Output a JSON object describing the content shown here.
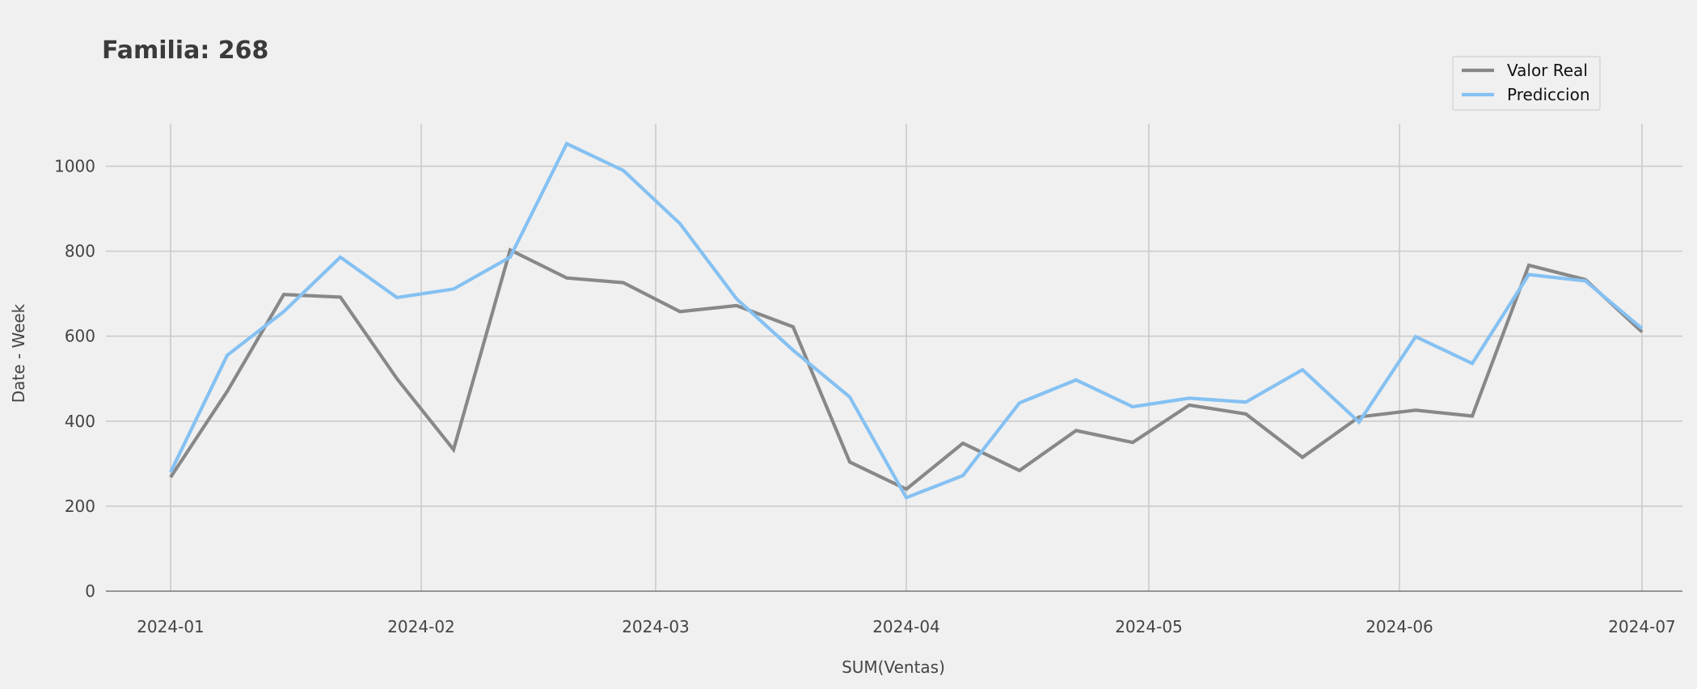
{
  "chart_data": {
    "type": "line",
    "title": "Familia: 268",
    "xlabel": "SUM(Ventas)",
    "ylabel": "Date - Week",
    "ylim": [
      0,
      1100
    ],
    "yticks": [
      0,
      200,
      400,
      600,
      800,
      1000
    ],
    "xlim": [
      "2023-12-24",
      "2024-07-06"
    ],
    "xticks": [
      "2024-01-01",
      "2024-02-01",
      "2024-03-01",
      "2024-04-01",
      "2024-05-01",
      "2024-06-01",
      "2024-07-01"
    ],
    "xtick_labels": [
      "2024-01",
      "2024-02",
      "2024-03",
      "2024-04",
      "2024-05",
      "2024-06",
      "2024-07"
    ],
    "grid": true,
    "legend_position": "top-right",
    "series": [
      {
        "name": "Valor Real",
        "color": "#888888",
        "points": [
          [
            "2024-01-01",
            268
          ],
          [
            "2024-01-08",
            470
          ],
          [
            "2024-01-15",
            698
          ],
          [
            "2024-01-22",
            692
          ],
          [
            "2024-01-29",
            500
          ],
          [
            "2024-02-05",
            333
          ],
          [
            "2024-02-12",
            803
          ],
          [
            "2024-02-19",
            737
          ],
          [
            "2024-02-26",
            726
          ],
          [
            "2024-03-04",
            658
          ],
          [
            "2024-03-11",
            672
          ],
          [
            "2024-03-18",
            622
          ],
          [
            "2024-03-25",
            304
          ],
          [
            "2024-04-01",
            240
          ],
          [
            "2024-04-08",
            348
          ],
          [
            "2024-04-15",
            284
          ],
          [
            "2024-04-22",
            378
          ],
          [
            "2024-04-29",
            350
          ],
          [
            "2024-05-06",
            438
          ],
          [
            "2024-05-13",
            417
          ],
          [
            "2024-05-20",
            315
          ],
          [
            "2024-05-27",
            410
          ],
          [
            "2024-06-03",
            426
          ],
          [
            "2024-06-10",
            412
          ],
          [
            "2024-06-17",
            767
          ],
          [
            "2024-06-24",
            733
          ],
          [
            "2024-07-01",
            610
          ]
        ]
      },
      {
        "name": "Prediccion",
        "color": "#85c1f2",
        "points": [
          [
            "2024-01-01",
            280
          ],
          [
            "2024-01-08",
            555
          ],
          [
            "2024-01-15",
            658
          ],
          [
            "2024-01-22",
            786
          ],
          [
            "2024-01-29",
            691
          ],
          [
            "2024-02-05",
            711
          ],
          [
            "2024-02-12",
            786
          ],
          [
            "2024-02-19",
            1053
          ],
          [
            "2024-02-26",
            990
          ],
          [
            "2024-03-04",
            865
          ],
          [
            "2024-03-11",
            688
          ],
          [
            "2024-03-18",
            567
          ],
          [
            "2024-03-25",
            457
          ],
          [
            "2024-04-01",
            220
          ],
          [
            "2024-04-08",
            272
          ],
          [
            "2024-04-15",
            443
          ],
          [
            "2024-04-22",
            497
          ],
          [
            "2024-04-29",
            434
          ],
          [
            "2024-05-06",
            454
          ],
          [
            "2024-05-13",
            445
          ],
          [
            "2024-05-20",
            521
          ],
          [
            "2024-05-27",
            398
          ],
          [
            "2024-06-03",
            599
          ],
          [
            "2024-06-10",
            536
          ],
          [
            "2024-06-17",
            745
          ],
          [
            "2024-06-24",
            730
          ],
          [
            "2024-07-01",
            618
          ]
        ]
      }
    ]
  }
}
